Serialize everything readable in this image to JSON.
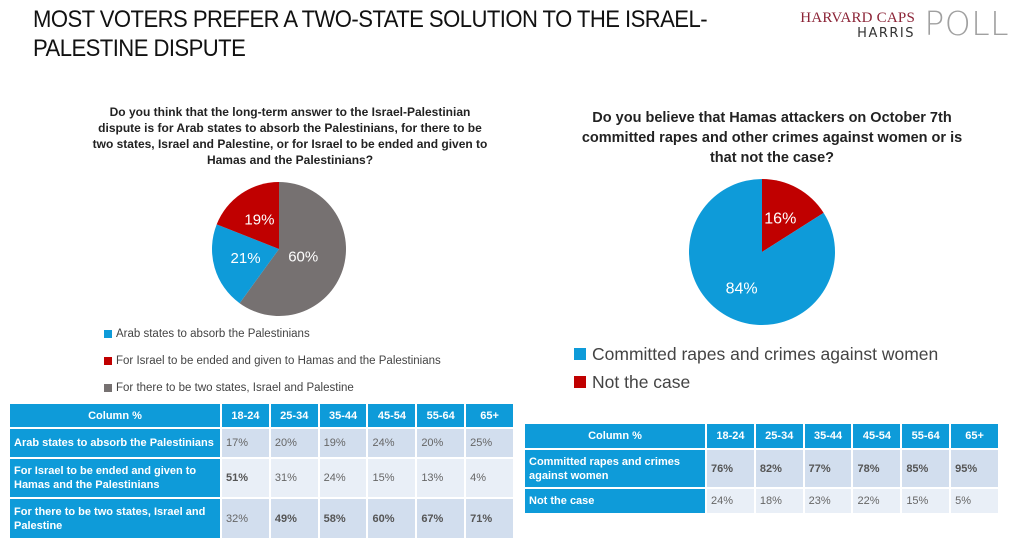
{
  "header": {
    "title": "MOST VOTERS PREFER A TWO-STATE SOLUTION TO THE ISRAEL-PALESTINE DISPUTE",
    "logo": {
      "line1": "HARVARD CAPS",
      "line2": "HARRIS",
      "poll": "POLL"
    }
  },
  "colors": {
    "blue": "#0e9bd9",
    "red": "#c00000",
    "gray": "#767171",
    "header_bg": "#0e9bd9"
  },
  "chart_data": [
    {
      "type": "pie",
      "title": "Do you think that the long-term answer to the Israel-Palestinian dispute is for Arab states to absorb the Palestinians, for there to be two states, Israel and Palestine, or for Israel to be ended and given to Hamas and the Palestinians?",
      "slices": [
        {
          "label": "For there to be two states, Israel and Palestine",
          "value": 60,
          "display": "60%",
          "color": "#767171"
        },
        {
          "label": "Arab states to absorb the Palestinians",
          "value": 21,
          "display": "21%",
          "color": "#0e9bd9"
        },
        {
          "label": "For Israel to be ended and given to Hamas and the Palestinians",
          "value": 19,
          "display": "19%",
          "color": "#c00000"
        }
      ],
      "legend": [
        {
          "label": "Arab states to absorb the Palestinians",
          "color": "#0e9bd9"
        },
        {
          "label": "For Israel to be ended and given to Hamas and the Palestinians",
          "color": "#c00000"
        },
        {
          "label": "For there to be two states, Israel and Palestine",
          "color": "#767171"
        }
      ],
      "legend_position": "bottom-left"
    },
    {
      "type": "pie",
      "title": "Do you believe that Hamas attackers on October 7th committed rapes and other crimes against women or is that not the case?",
      "slices": [
        {
          "label": "Not the case",
          "value": 16,
          "display": "16%",
          "color": "#c00000"
        },
        {
          "label": "Committed rapes and crimes against women",
          "value": 84,
          "display": "84%",
          "color": "#0e9bd9"
        }
      ],
      "legend": [
        {
          "label": "Committed rapes and crimes against women",
          "color": "#0e9bd9"
        },
        {
          "label": "Not the case",
          "color": "#c00000"
        }
      ],
      "legend_position": "bottom-left"
    }
  ],
  "tables": {
    "left": {
      "type": "table",
      "columns": [
        "Column %",
        "18-24",
        "25-34",
        "35-44",
        "45-54",
        "55-64",
        "65+"
      ],
      "rows": [
        {
          "label": "Arab states to absorb the Palestinians",
          "values": [
            "17%",
            "20%",
            "19%",
            "24%",
            "20%",
            "25%"
          ],
          "bold": [
            false,
            false,
            false,
            false,
            false,
            false
          ]
        },
        {
          "label": "For Israel to be ended and given to Hamas and the Palestinians",
          "values": [
            "51%",
            "31%",
            "24%",
            "15%",
            "13%",
            "4%"
          ],
          "bold": [
            true,
            false,
            false,
            false,
            false,
            false
          ]
        },
        {
          "label": "For there to be two states, Israel and Palestine",
          "values": [
            "32%",
            "49%",
            "58%",
            "60%",
            "67%",
            "71%"
          ],
          "bold": [
            false,
            true,
            true,
            true,
            true,
            true
          ]
        }
      ]
    },
    "right": {
      "type": "table",
      "columns": [
        "Column %",
        "18-24",
        "25-34",
        "35-44",
        "45-54",
        "55-64",
        "65+"
      ],
      "rows": [
        {
          "label": "Committed rapes and crimes against women",
          "values": [
            "76%",
            "82%",
            "77%",
            "78%",
            "85%",
            "95%"
          ],
          "bold": [
            true,
            true,
            true,
            true,
            true,
            true
          ]
        },
        {
          "label": "Not the case",
          "values": [
            "24%",
            "18%",
            "23%",
            "22%",
            "15%",
            "5%"
          ],
          "bold": [
            false,
            false,
            false,
            false,
            false,
            false
          ]
        }
      ]
    }
  }
}
